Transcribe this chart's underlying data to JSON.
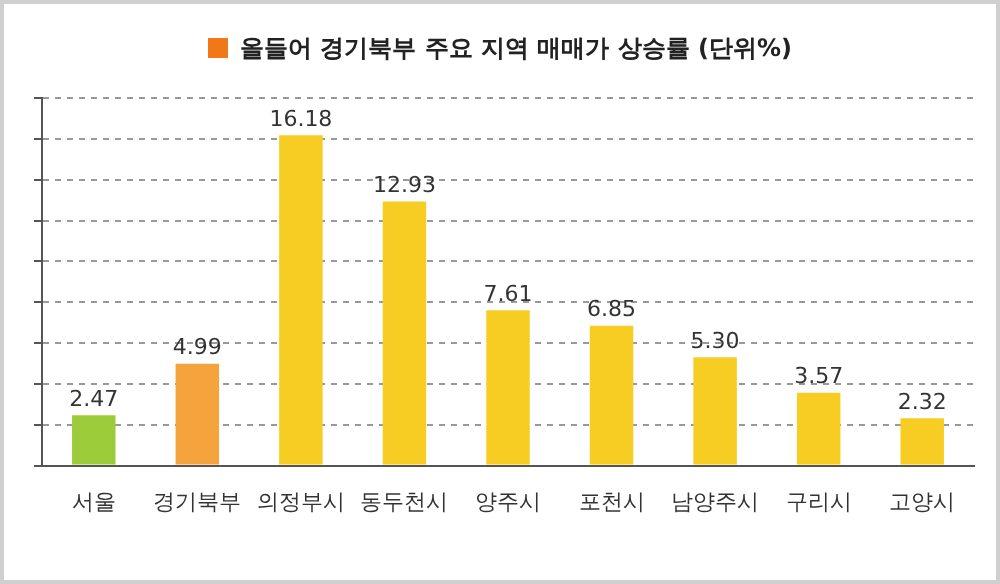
{
  "chart_data": {
    "type": "bar",
    "title": "올들어 경기북부 주요 지역 매매가 상승률 (단위%)",
    "categories": [
      "서울",
      "경기북부",
      "의정부시",
      "동두천시",
      "양주시",
      "포천시",
      "남양주시",
      "구리시",
      "고양시"
    ],
    "values": [
      2.47,
      4.99,
      16.18,
      12.93,
      7.61,
      6.85,
      5.3,
      3.57,
      2.32
    ],
    "value_labels": [
      "2.47",
      "4.99",
      "16.18",
      "12.93",
      "7.61",
      "6.85",
      "5.30",
      "3.57",
      "2.32"
    ],
    "colors": [
      "#9ccc3a",
      "#f5a33c",
      "#f7cd24",
      "#f7cd24",
      "#f7cd24",
      "#f7cd24",
      "#f7cd24",
      "#f7cd24",
      "#f7cd24"
    ],
    "ylim": [
      0,
      18
    ],
    "yticks": [
      {
        "value": 0,
        "label": null
      },
      {
        "value": 2,
        "label": null
      },
      {
        "value": 4,
        "label": null
      },
      {
        "value": 6,
        "label": null
      },
      {
        "value": 8,
        "label": null
      },
      {
        "value": 10,
        "label": null
      },
      {
        "value": 12,
        "label": null
      },
      {
        "value": 14,
        "label": null
      },
      {
        "value": 16,
        "label": null
      },
      {
        "value": 18,
        "label": null
      }
    ],
    "grid": "y",
    "tick_labels": "x",
    "legend": false
  }
}
